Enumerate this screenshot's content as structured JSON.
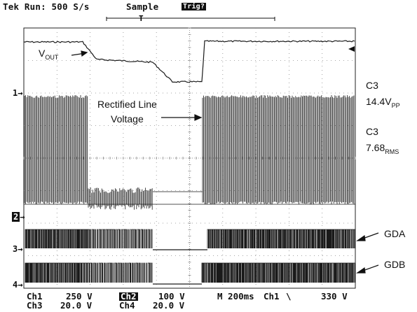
{
  "header": {
    "status": "Tek Run: 500 S/s",
    "mode": "Sample",
    "trig": "Trig?",
    "trigger_marker": "T"
  },
  "annotations": {
    "vout_main": "V",
    "vout_sub": "OUT",
    "rectified_line1": "Rectified Line",
    "rectified_line2": "Voltage",
    "gda": "GDA",
    "gdb": "GDB"
  },
  "measurements": {
    "m1_label": "C3",
    "m1_value": "14.4V",
    "m1_unit": "PP",
    "m2_label": "C3",
    "m2_value": "7.68",
    "m2_unit": "RMS"
  },
  "channel_markers": {
    "ch1": "1",
    "ch2": "2",
    "ch3": "3",
    "ch4": "4"
  },
  "footer": {
    "ch1_name": "Ch1",
    "ch1_scale": "250 V",
    "ch2_name": "Ch2",
    "ch2_scale": "100 V",
    "ch3_name": "Ch3",
    "ch3_scale": "20.0 V",
    "ch4_name": "Ch4",
    "ch4_scale": "20.0 V",
    "timebase": "M 200ms",
    "trigger_source": "Ch1",
    "trigger_slope": "\\",
    "trigger_level": "330 V"
  },
  "colors": {
    "trace": "#1a1a1a",
    "grid": "#8a8a8a",
    "background": "#ffffff"
  }
}
